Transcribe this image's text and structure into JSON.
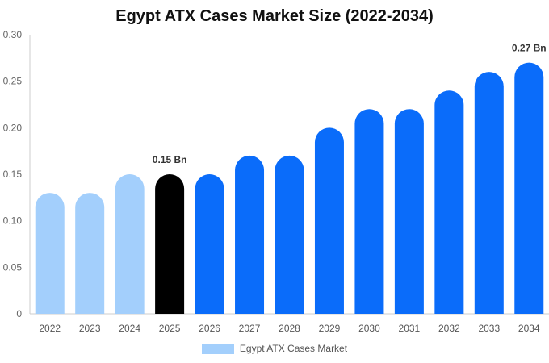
{
  "chart_data": {
    "type": "bar",
    "title": "Egypt ATX Cases Market Size (2022-2034)",
    "categories": [
      "2022",
      "2023",
      "2024",
      "2025",
      "2026",
      "2027",
      "2028",
      "2029",
      "2030",
      "2031",
      "2032",
      "2033",
      "2034"
    ],
    "series": [
      {
        "name": "Egypt ATX Cases Market",
        "values": [
          0.13,
          0.13,
          0.15,
          0.15,
          0.15,
          0.17,
          0.17,
          0.2,
          0.22,
          0.22,
          0.24,
          0.26,
          0.27
        ]
      }
    ],
    "ylim": [
      0,
      0.3
    ],
    "yticks": [
      "0",
      "0.05",
      "0.10",
      "0.15",
      "0.20",
      "0.25",
      "0.30"
    ],
    "data_labels": [
      {
        "index": 3,
        "text": "0.15 Bn"
      },
      {
        "index": 12,
        "text": "0.27 Bn"
      }
    ],
    "bar_colors": [
      "#a3cffc",
      "#a3cffc",
      "#a3cffc",
      "#000000",
      "#0a6cfa",
      "#0a6cfa",
      "#0a6cfa",
      "#0a6cfa",
      "#0a6cfa",
      "#0a6cfa",
      "#0a6cfa",
      "#0a6cfa",
      "#0a6cfa"
    ],
    "legend_color": "#a3cffc",
    "legend_position": "bottom",
    "grid": false
  }
}
